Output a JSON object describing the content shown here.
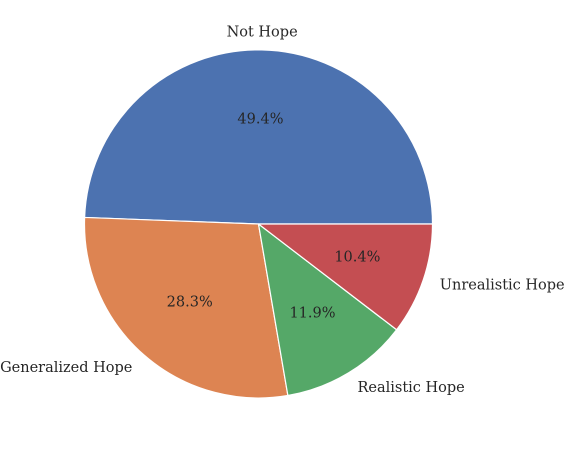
{
  "chart_data": {
    "type": "pie",
    "title": "",
    "slices": [
      {
        "label": "Not Hope",
        "value": 49.4,
        "pct_label": "49.4%",
        "color": "#4c72b0"
      },
      {
        "label": "Generalized Hope",
        "value": 28.3,
        "pct_label": "28.3%",
        "color": "#dd8452"
      },
      {
        "label": "Realistic Hope",
        "value": 11.9,
        "pct_label": "11.9%",
        "color": "#55a868"
      },
      {
        "label": "Unrealistic Hope",
        "value": 10.4,
        "pct_label": "10.4%",
        "color": "#c44e52"
      }
    ],
    "start_angle_deg": 0,
    "direction": "counterclockwise",
    "edge_color": "#ffffff"
  }
}
